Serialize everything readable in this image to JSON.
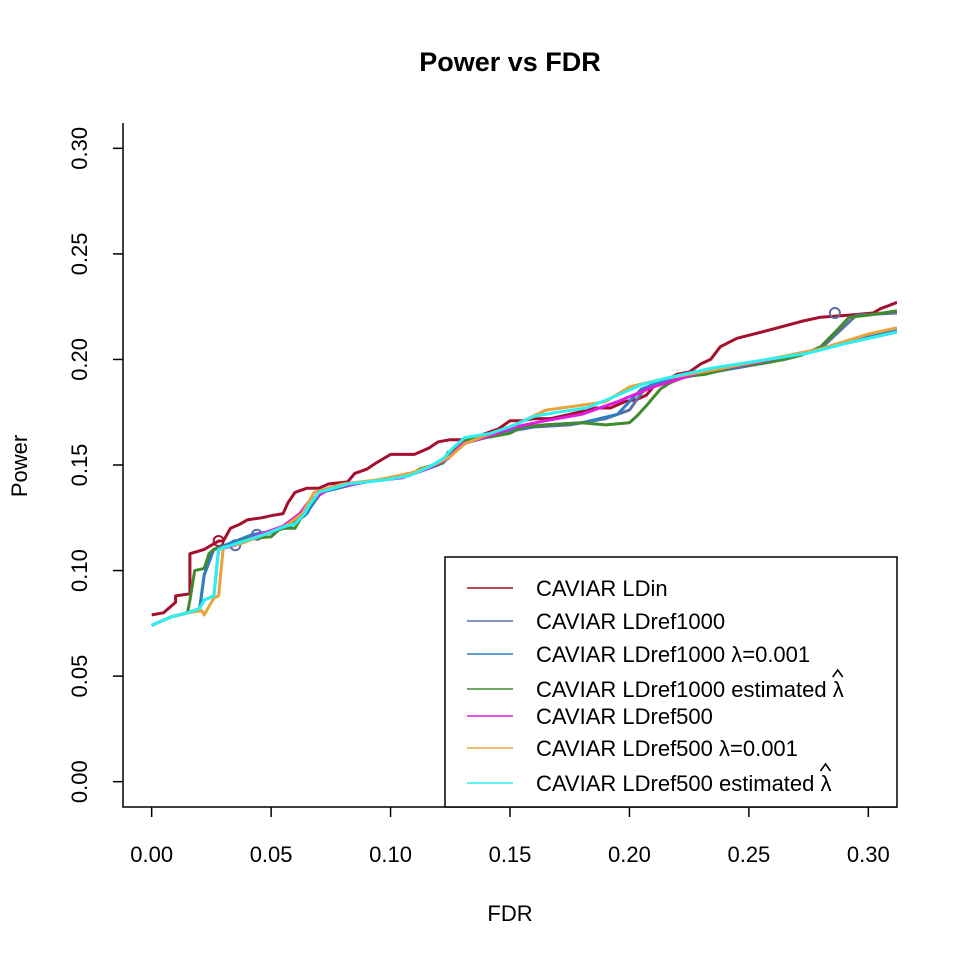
{
  "chart_data": {
    "type": "line",
    "title": "Power vs FDR",
    "xlabel": "FDR",
    "ylabel": "Power",
    "xlim": [
      -0.012,
      0.312
    ],
    "ylim": [
      -0.012,
      0.312
    ],
    "x_ticks": [
      "0.00",
      "0.05",
      "0.10",
      "0.15",
      "0.20",
      "0.25",
      "0.30"
    ],
    "y_ticks": [
      "0.00",
      "0.05",
      "0.10",
      "0.15",
      "0.20",
      "0.25",
      "0.30"
    ],
    "grid": false,
    "legend_position": "bottom-right",
    "series": [
      {
        "name": "CAVIAR LDin",
        "color": "#A50F2D",
        "points": [
          [
            0.0,
            0.079
          ],
          [
            0.005,
            0.08
          ],
          [
            0.01,
            0.085
          ],
          [
            0.01,
            0.088
          ],
          [
            0.016,
            0.089
          ],
          [
            0.016,
            0.108
          ],
          [
            0.022,
            0.11
          ],
          [
            0.028,
            0.114
          ],
          [
            0.03,
            0.114
          ],
          [
            0.033,
            0.12
          ],
          [
            0.037,
            0.122
          ],
          [
            0.04,
            0.124
          ],
          [
            0.046,
            0.125
          ],
          [
            0.05,
            0.126
          ],
          [
            0.055,
            0.127
          ],
          [
            0.057,
            0.132
          ],
          [
            0.06,
            0.137
          ],
          [
            0.065,
            0.139
          ],
          [
            0.07,
            0.139
          ],
          [
            0.074,
            0.141
          ],
          [
            0.082,
            0.142
          ],
          [
            0.085,
            0.146
          ],
          [
            0.09,
            0.148
          ],
          [
            0.094,
            0.151
          ],
          [
            0.1,
            0.155
          ],
          [
            0.11,
            0.155
          ],
          [
            0.116,
            0.158
          ],
          [
            0.12,
            0.161
          ],
          [
            0.125,
            0.162
          ],
          [
            0.13,
            0.162
          ],
          [
            0.135,
            0.163
          ],
          [
            0.14,
            0.165
          ],
          [
            0.145,
            0.167
          ],
          [
            0.15,
            0.171
          ],
          [
            0.155,
            0.171
          ],
          [
            0.16,
            0.172
          ],
          [
            0.167,
            0.172
          ],
          [
            0.175,
            0.174
          ],
          [
            0.186,
            0.177
          ],
          [
            0.192,
            0.177
          ],
          [
            0.198,
            0.18
          ],
          [
            0.203,
            0.181
          ],
          [
            0.207,
            0.183
          ],
          [
            0.21,
            0.187
          ],
          [
            0.215,
            0.19
          ],
          [
            0.22,
            0.193
          ],
          [
            0.225,
            0.194
          ],
          [
            0.23,
            0.198
          ],
          [
            0.234,
            0.2
          ],
          [
            0.238,
            0.206
          ],
          [
            0.245,
            0.21
          ],
          [
            0.252,
            0.212
          ],
          [
            0.262,
            0.215
          ],
          [
            0.272,
            0.218
          ],
          [
            0.28,
            0.22
          ],
          [
            0.292,
            0.221
          ],
          [
            0.302,
            0.222
          ],
          [
            0.305,
            0.224
          ],
          [
            0.312,
            0.227
          ]
        ],
        "markers": [
          [
            0.028,
            0.114
          ]
        ]
      },
      {
        "name": "CAVIAR LDref1000",
        "color": "#5D6FA5",
        "points": [
          [
            0.0,
            0.074
          ],
          [
            0.008,
            0.078
          ],
          [
            0.015,
            0.08
          ],
          [
            0.02,
            0.081
          ],
          [
            0.022,
            0.098
          ],
          [
            0.026,
            0.11
          ],
          [
            0.033,
            0.113
          ],
          [
            0.04,
            0.115
          ],
          [
            0.05,
            0.118
          ],
          [
            0.058,
            0.121
          ],
          [
            0.064,
            0.126
          ],
          [
            0.071,
            0.137
          ],
          [
            0.085,
            0.141
          ],
          [
            0.1,
            0.144
          ],
          [
            0.11,
            0.146
          ],
          [
            0.12,
            0.15
          ],
          [
            0.125,
            0.155
          ],
          [
            0.13,
            0.16
          ],
          [
            0.14,
            0.163
          ],
          [
            0.15,
            0.166
          ],
          [
            0.16,
            0.168
          ],
          [
            0.175,
            0.169
          ],
          [
            0.19,
            0.172
          ],
          [
            0.2,
            0.176
          ],
          [
            0.205,
            0.184
          ],
          [
            0.21,
            0.189
          ],
          [
            0.23,
            0.193
          ],
          [
            0.26,
            0.199
          ],
          [
            0.28,
            0.205
          ],
          [
            0.295,
            0.221
          ],
          [
            0.312,
            0.222
          ]
        ],
        "markers": [
          [
            0.035,
            0.112
          ],
          [
            0.044,
            0.117
          ],
          [
            0.286,
            0.222
          ]
        ]
      },
      {
        "name": "CAVIAR LDref1000 λ=0.001",
        "color": "#2C7FC4",
        "points": [
          [
            0.0,
            0.074
          ],
          [
            0.008,
            0.078
          ],
          [
            0.015,
            0.08
          ],
          [
            0.02,
            0.081
          ],
          [
            0.022,
            0.098
          ],
          [
            0.026,
            0.11
          ],
          [
            0.033,
            0.113
          ],
          [
            0.042,
            0.117
          ],
          [
            0.052,
            0.119
          ],
          [
            0.059,
            0.122
          ],
          [
            0.065,
            0.127
          ],
          [
            0.07,
            0.137
          ],
          [
            0.085,
            0.141
          ],
          [
            0.1,
            0.144
          ],
          [
            0.112,
            0.147
          ],
          [
            0.122,
            0.151
          ],
          [
            0.127,
            0.157
          ],
          [
            0.132,
            0.161
          ],
          [
            0.142,
            0.164
          ],
          [
            0.152,
            0.167
          ],
          [
            0.165,
            0.169
          ],
          [
            0.18,
            0.17
          ],
          [
            0.195,
            0.174
          ],
          [
            0.205,
            0.186
          ],
          [
            0.215,
            0.19
          ],
          [
            0.235,
            0.194
          ],
          [
            0.26,
            0.2
          ],
          [
            0.285,
            0.206
          ],
          [
            0.3,
            0.211
          ],
          [
            0.312,
            0.214
          ]
        ]
      },
      {
        "name": "CAVIAR LDref1000 estimated λ",
        "color": "#3F8B2E",
        "points": [
          [
            0.0,
            0.074
          ],
          [
            0.008,
            0.078
          ],
          [
            0.015,
            0.08
          ],
          [
            0.016,
            0.086
          ],
          [
            0.018,
            0.1
          ],
          [
            0.022,
            0.101
          ],
          [
            0.024,
            0.108
          ],
          [
            0.026,
            0.11
          ],
          [
            0.034,
            0.112
          ],
          [
            0.04,
            0.115
          ],
          [
            0.05,
            0.116
          ],
          [
            0.054,
            0.12
          ],
          [
            0.06,
            0.12
          ],
          [
            0.063,
            0.126
          ],
          [
            0.066,
            0.131
          ],
          [
            0.07,
            0.137
          ],
          [
            0.075,
            0.139
          ],
          [
            0.085,
            0.141
          ],
          [
            0.1,
            0.144
          ],
          [
            0.108,
            0.145
          ],
          [
            0.112,
            0.148
          ],
          [
            0.118,
            0.15
          ],
          [
            0.122,
            0.151
          ],
          [
            0.124,
            0.156
          ],
          [
            0.128,
            0.158
          ],
          [
            0.131,
            0.162
          ],
          [
            0.14,
            0.163
          ],
          [
            0.15,
            0.165
          ],
          [
            0.155,
            0.168
          ],
          [
            0.165,
            0.169
          ],
          [
            0.18,
            0.17
          ],
          [
            0.19,
            0.169
          ],
          [
            0.2,
            0.17
          ],
          [
            0.203,
            0.173
          ],
          [
            0.207,
            0.178
          ],
          [
            0.21,
            0.182
          ],
          [
            0.213,
            0.186
          ],
          [
            0.217,
            0.189
          ],
          [
            0.224,
            0.192
          ],
          [
            0.232,
            0.193
          ],
          [
            0.246,
            0.197
          ],
          [
            0.255,
            0.198
          ],
          [
            0.265,
            0.2
          ],
          [
            0.272,
            0.202
          ],
          [
            0.28,
            0.206
          ],
          [
            0.287,
            0.214
          ],
          [
            0.292,
            0.22
          ],
          [
            0.3,
            0.221
          ],
          [
            0.312,
            0.223
          ]
        ]
      },
      {
        "name": "CAVIAR LDref500",
        "color": "#E21CDE",
        "points": [
          [
            0.0,
            0.074
          ],
          [
            0.008,
            0.078
          ],
          [
            0.015,
            0.08
          ],
          [
            0.02,
            0.082
          ],
          [
            0.022,
            0.086
          ],
          [
            0.026,
            0.088
          ],
          [
            0.028,
            0.11
          ],
          [
            0.035,
            0.112
          ],
          [
            0.045,
            0.117
          ],
          [
            0.055,
            0.121
          ],
          [
            0.062,
            0.127
          ],
          [
            0.066,
            0.133
          ],
          [
            0.075,
            0.139
          ],
          [
            0.09,
            0.142
          ],
          [
            0.105,
            0.144
          ],
          [
            0.115,
            0.148
          ],
          [
            0.124,
            0.153
          ],
          [
            0.13,
            0.16
          ],
          [
            0.142,
            0.164
          ],
          [
            0.152,
            0.168
          ],
          [
            0.165,
            0.171
          ],
          [
            0.18,
            0.174
          ],
          [
            0.195,
            0.18
          ],
          [
            0.21,
            0.187
          ],
          [
            0.23,
            0.194
          ],
          [
            0.255,
            0.199
          ],
          [
            0.28,
            0.205
          ],
          [
            0.3,
            0.21
          ],
          [
            0.312,
            0.213
          ]
        ]
      },
      {
        "name": "CAVIAR LDref500 λ=0.001",
        "color": "#E8A33D",
        "points": [
          [
            0.0,
            0.074
          ],
          [
            0.008,
            0.078
          ],
          [
            0.015,
            0.08
          ],
          [
            0.021,
            0.081
          ],
          [
            0.022,
            0.079
          ],
          [
            0.026,
            0.087
          ],
          [
            0.028,
            0.088
          ],
          [
            0.03,
            0.111
          ],
          [
            0.038,
            0.113
          ],
          [
            0.047,
            0.117
          ],
          [
            0.056,
            0.121
          ],
          [
            0.063,
            0.127
          ],
          [
            0.068,
            0.137
          ],
          [
            0.08,
            0.141
          ],
          [
            0.095,
            0.143
          ],
          [
            0.108,
            0.146
          ],
          [
            0.118,
            0.15
          ],
          [
            0.125,
            0.154
          ],
          [
            0.131,
            0.16
          ],
          [
            0.142,
            0.165
          ],
          [
            0.152,
            0.169
          ],
          [
            0.165,
            0.176
          ],
          [
            0.178,
            0.178
          ],
          [
            0.19,
            0.18
          ],
          [
            0.2,
            0.187
          ],
          [
            0.215,
            0.191
          ],
          [
            0.235,
            0.195
          ],
          [
            0.258,
            0.2
          ],
          [
            0.28,
            0.205
          ],
          [
            0.3,
            0.212
          ],
          [
            0.312,
            0.215
          ]
        ]
      },
      {
        "name": "CAVIAR LDref500 estimated λ",
        "color": "#2DF0F0",
        "points": [
          [
            0.0,
            0.074
          ],
          [
            0.008,
            0.078
          ],
          [
            0.015,
            0.08
          ],
          [
            0.02,
            0.082
          ],
          [
            0.022,
            0.086
          ],
          [
            0.026,
            0.088
          ],
          [
            0.028,
            0.11
          ],
          [
            0.036,
            0.113
          ],
          [
            0.047,
            0.117
          ],
          [
            0.056,
            0.121
          ],
          [
            0.06,
            0.122
          ],
          [
            0.064,
            0.127
          ],
          [
            0.066,
            0.131
          ],
          [
            0.07,
            0.137
          ],
          [
            0.082,
            0.141
          ],
          [
            0.098,
            0.143
          ],
          [
            0.108,
            0.145
          ],
          [
            0.116,
            0.149
          ],
          [
            0.122,
            0.153
          ],
          [
            0.126,
            0.158
          ],
          [
            0.131,
            0.163
          ],
          [
            0.142,
            0.165
          ],
          [
            0.152,
            0.169
          ],
          [
            0.16,
            0.173
          ],
          [
            0.17,
            0.175
          ],
          [
            0.182,
            0.177
          ],
          [
            0.193,
            0.182
          ],
          [
            0.205,
            0.188
          ],
          [
            0.215,
            0.191
          ],
          [
            0.235,
            0.196
          ],
          [
            0.258,
            0.2
          ],
          [
            0.275,
            0.203
          ],
          [
            0.292,
            0.208
          ],
          [
            0.312,
            0.213
          ]
        ]
      }
    ]
  }
}
